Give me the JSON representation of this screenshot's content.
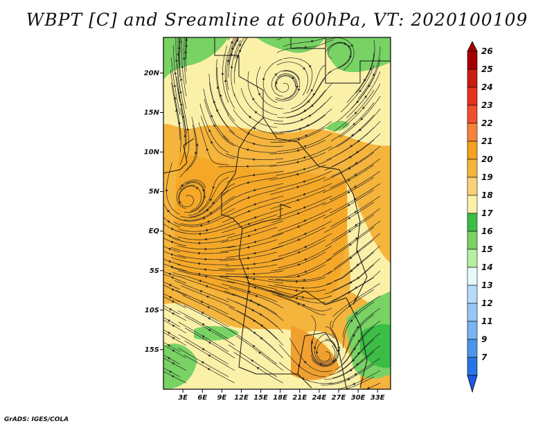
{
  "title": "WBPT [C] and Sreamline at 600hPa, VT: 2020100109",
  "footer": "GrADS: IGES/COLA",
  "map": {
    "lon_range": [
      0,
      35
    ],
    "lat_range": [
      -20,
      24.5
    ],
    "lat_ticks": [
      {
        "label": "20N",
        "value": 20
      },
      {
        "label": "15N",
        "value": 15
      },
      {
        "label": "10N",
        "value": 10
      },
      {
        "label": "5N",
        "value": 5
      },
      {
        "label": "EQ",
        "value": 0
      },
      {
        "label": "5S",
        "value": -5
      },
      {
        "label": "10S",
        "value": -10
      },
      {
        "label": "15S",
        "value": -15
      }
    ],
    "lon_ticks": [
      {
        "label": "3E",
        "value": 3
      },
      {
        "label": "6E",
        "value": 6
      },
      {
        "label": "9E",
        "value": 9
      },
      {
        "label": "12E",
        "value": 12
      },
      {
        "label": "15E",
        "value": 15
      },
      {
        "label": "18E",
        "value": 18
      },
      {
        "label": "21E",
        "value": 21
      },
      {
        "label": "24E",
        "value": 24
      },
      {
        "label": "27E",
        "value": 27
      },
      {
        "label": "30E",
        "value": 30
      },
      {
        "label": "33E",
        "value": 33
      }
    ]
  },
  "colorbar": {
    "levels": [
      {
        "label": "26",
        "color": "#a50000"
      },
      {
        "label": "25",
        "color": "#c81e0f"
      },
      {
        "label": "24",
        "color": "#e6321e"
      },
      {
        "label": "23",
        "color": "#f0502d"
      },
      {
        "label": "22",
        "color": "#f7823c"
      },
      {
        "label": "21",
        "color": "#f5a020"
      },
      {
        "label": "20",
        "color": "#f5b43c"
      },
      {
        "label": "19",
        "color": "#f7d27a"
      },
      {
        "label": "18",
        "color": "#fbf0a8"
      },
      {
        "label": "17",
        "color": "#3cbe46"
      },
      {
        "label": "16",
        "color": "#78d264"
      },
      {
        "label": "15",
        "color": "#b4f0a0"
      },
      {
        "label": "14",
        "color": "#e6fafa"
      },
      {
        "label": "13",
        "color": "#b4dcfa"
      },
      {
        "label": "12",
        "color": "#96c8f5"
      },
      {
        "label": "11",
        "color": "#78b4f0"
      },
      {
        "label": "9",
        "color": "#4b96eb"
      },
      {
        "label": "7",
        "color": "#2873e6"
      }
    ],
    "bottom_color": "#1e5ae1"
  }
}
